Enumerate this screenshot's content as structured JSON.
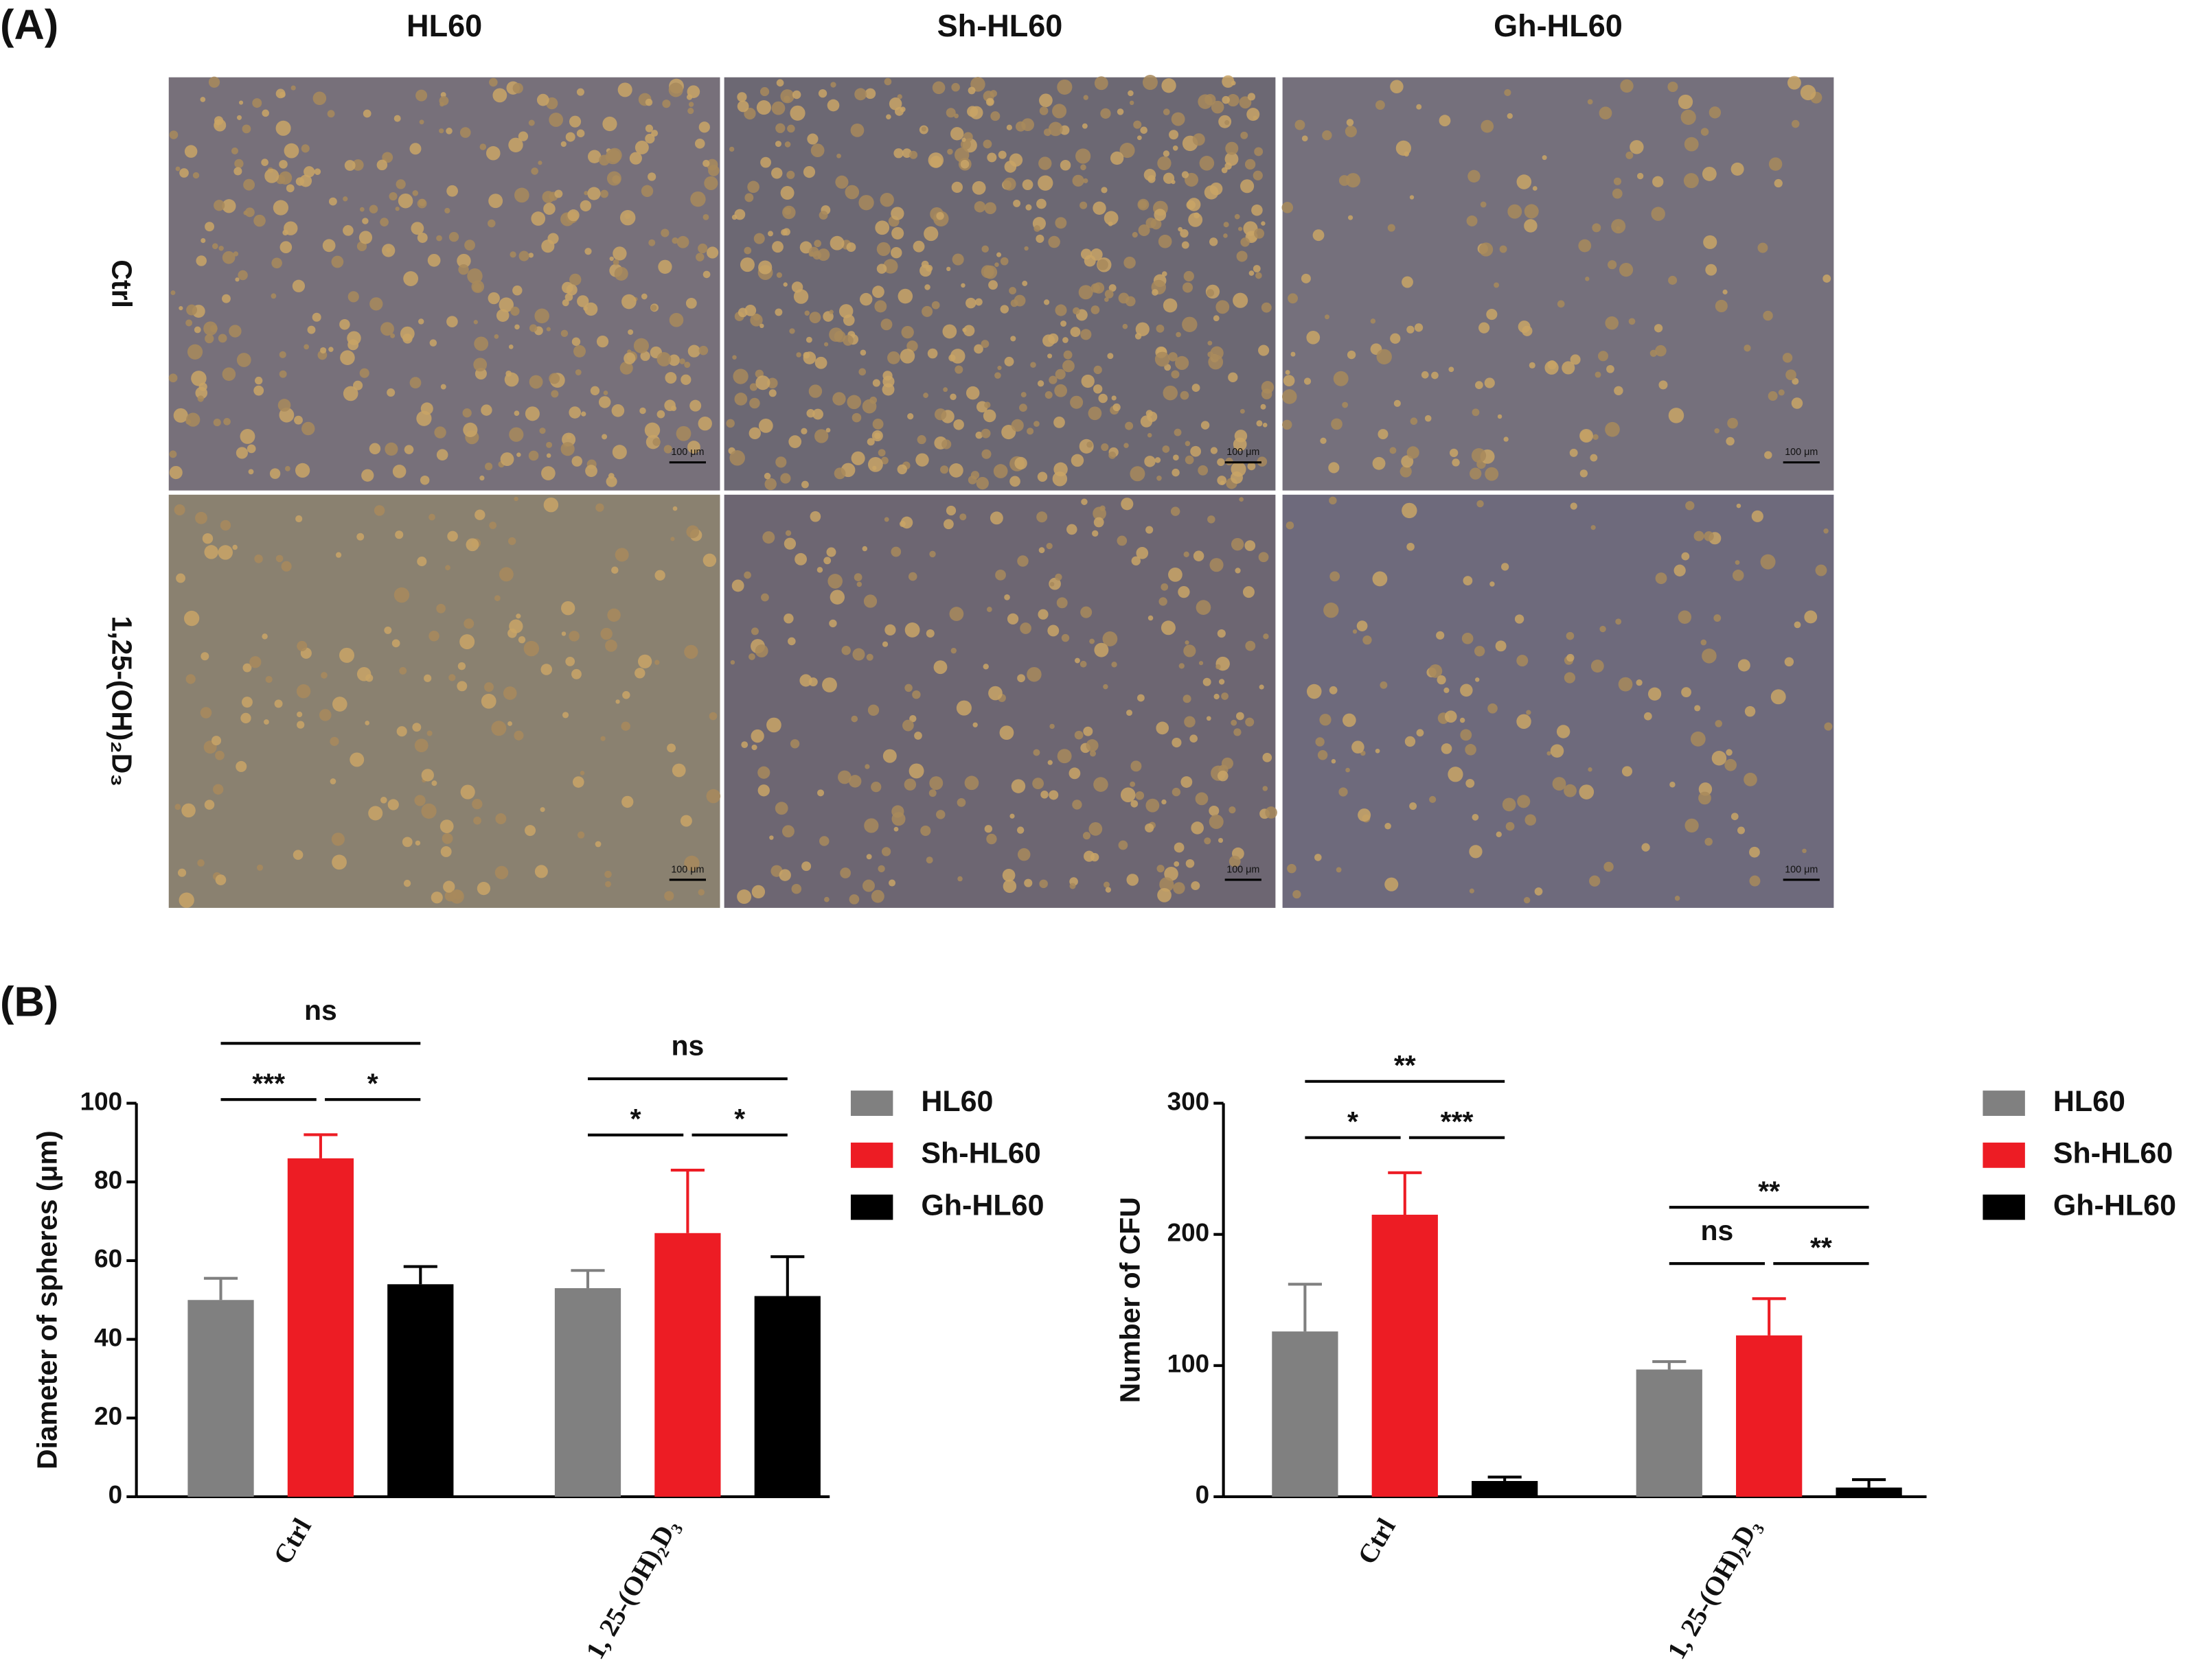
{
  "panel_labels": [
    "(A)",
    "(B)"
  ],
  "micrographs": {
    "columns": [
      "HL60",
      "Sh-HL60",
      "Gh-HL60"
    ],
    "rows": [
      "Ctrl",
      "1,25-(OH)₂D₃"
    ],
    "scale_bar": "100 μm"
  },
  "chart_data": [
    {
      "type": "bar",
      "y_label": "Diameter of spheres (μm)",
      "categories": [
        "Ctrl",
        "1, 25-(OH)₂D₃"
      ],
      "series": [
        {
          "name": "HL60",
          "color": "#808080",
          "values": [
            50,
            53
          ],
          "errors": [
            5.5,
            4.5
          ]
        },
        {
          "name": "Sh-HL60",
          "color": "#ed1c24",
          "values": [
            86,
            67
          ],
          "errors": [
            6,
            16
          ]
        },
        {
          "name": "Gh-HL60",
          "color": "#000000",
          "values": [
            54,
            51
          ],
          "errors": [
            4.5,
            10
          ]
        }
      ],
      "ylim": [
        0,
        100
      ],
      "yticks": [
        0,
        20,
        40,
        60,
        80,
        100
      ],
      "legend": "right",
      "significance": [
        {
          "category": "Ctrl",
          "between": [
            "HL60",
            "Sh-HL60"
          ],
          "label": "***"
        },
        {
          "category": "Ctrl",
          "between": [
            "Sh-HL60",
            "Gh-HL60"
          ],
          "label": "*"
        },
        {
          "category": "Ctrl",
          "between": [
            "HL60",
            "Gh-HL60"
          ],
          "label": "ns"
        },
        {
          "category": "1, 25-(OH)₂D₃",
          "between": [
            "HL60",
            "Sh-HL60"
          ],
          "label": "*"
        },
        {
          "category": "1, 25-(OH)₂D₃",
          "between": [
            "Sh-HL60",
            "Gh-HL60"
          ],
          "label": "*"
        },
        {
          "category": "1, 25-(OH)₂D₃",
          "between": [
            "HL60",
            "Gh-HL60"
          ],
          "label": "ns"
        }
      ]
    },
    {
      "type": "bar",
      "y_label": "Number of CFU",
      "categories": [
        "Ctrl",
        "1, 25-(OH)₂D₃"
      ],
      "series": [
        {
          "name": "HL60",
          "color": "#808080",
          "values": [
            126,
            97
          ],
          "errors": [
            36,
            6
          ]
        },
        {
          "name": "Sh-HL60",
          "color": "#ed1c24",
          "values": [
            215,
            123
          ],
          "errors": [
            32,
            28
          ]
        },
        {
          "name": "Gh-HL60",
          "color": "#000000",
          "values": [
            12,
            7
          ],
          "errors": [
            3,
            6
          ]
        }
      ],
      "ylim": [
        0,
        300
      ],
      "yticks": [
        0,
        100,
        200,
        300
      ],
      "legend": "right",
      "significance": [
        {
          "category": "Ctrl",
          "between": [
            "HL60",
            "Sh-HL60"
          ],
          "label": "*"
        },
        {
          "category": "Ctrl",
          "between": [
            "Sh-HL60",
            "Gh-HL60"
          ],
          "label": "***"
        },
        {
          "category": "Ctrl",
          "between": [
            "HL60",
            "Gh-HL60"
          ],
          "label": "**"
        },
        {
          "category": "1, 25-(OH)₂D₃",
          "between": [
            "HL60",
            "Sh-HL60"
          ],
          "label": "ns"
        },
        {
          "category": "1, 25-(OH)₂D₃",
          "between": [
            "Sh-HL60",
            "Gh-HL60"
          ],
          "label": "**"
        },
        {
          "category": "1, 25-(OH)₂D₃",
          "between": [
            "HL60",
            "Gh-HL60"
          ],
          "label": "**"
        }
      ]
    }
  ]
}
